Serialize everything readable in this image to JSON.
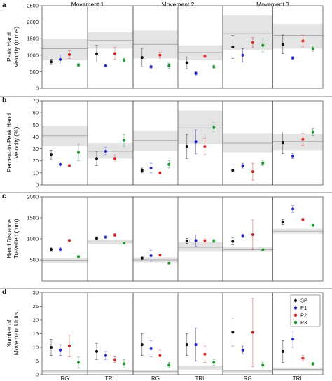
{
  "chart_data": {
    "type": "scatter",
    "columns": [
      "Movement 1",
      "Movement 2",
      "Movement 3"
    ],
    "groups": [
      "RG",
      "TRL"
    ],
    "legend": {
      "placement": "right",
      "entries": [
        {
          "name": "SP",
          "color": "#111111"
        },
        {
          "name": "P1",
          "color": "#1f1fd1"
        },
        {
          "name": "P2",
          "color": "#e0201b"
        },
        {
          "name": "P3",
          "color": "#1a9a2a"
        }
      ]
    },
    "panels": [
      {
        "letter": "a",
        "ylabel": [
          "Peak Hand",
          "Velocity (mm/s)"
        ],
        "ylim": [
          0,
          2500
        ],
        "yticks": [
          0,
          500,
          1000,
          1500,
          2000,
          2500
        ],
        "cells": [
          [
            {
              "band": [
                850,
                1500
              ],
              "mean": 1200,
              "points": [
                [
                  800,
                  80
                ],
                [
                  870,
                  140
                ],
                [
                  1020,
                  120
                ],
                [
                  700,
                  50
                ]
              ]
            },
            {
              "band": [
                1200,
                1700
              ],
              "mean": 1450,
              "points": [
                [
                  1050,
                  250
                ],
                [
                  680,
                  40
                ],
                [
                  1050,
                  180
                ],
                [
                  850,
                  60
                ]
              ]
            }
          ],
          [
            {
              "band": [
                900,
                1750
              ],
              "mean": 1330,
              "points": [
                [
                  930,
                  280
                ],
                [
                  650,
                  40
                ],
                [
                  1000,
                  90
                ],
                [
                  680,
                  80
                ]
              ]
            },
            {
              "band": [
                850,
                1300
              ],
              "mean": 1080,
              "points": [
                [
                  770,
                  180
                ],
                [
                  450,
                  50
                ],
                [
                  970,
                  40
                ],
                [
                  650,
                  50
                ]
              ]
            }
          ],
          [
            {
              "band": [
                1150,
                2200
              ],
              "mean": 1650,
              "points": [
                [
                  1250,
                  350
                ],
                [
                  1000,
                  200
                ],
                [
                  1380,
                  150
                ],
                [
                  1300,
                  200
                ]
              ]
            },
            {
              "band": [
                1200,
                1950
              ],
              "mean": 1600,
              "points": [
                [
                  1330,
                  280
                ],
                [
                  920,
                  40
                ],
                [
                  1430,
                  180
                ],
                [
                  1200,
                  80
                ]
              ]
            }
          ]
        ]
      },
      {
        "letter": "b",
        "ylabel": [
          "Percent-to-Peak Hand",
          "Velocity (%)"
        ],
        "ylim": [
          0,
          70
        ],
        "yticks": [
          0,
          10,
          20,
          30,
          40,
          50,
          60,
          70
        ],
        "cells": [
          [
            {
              "band": [
                32,
                49
              ],
              "mean": 41,
              "points": [
                [
                  25,
                  4
                ],
                [
                  17,
                  2
                ],
                [
                  16,
                  1
                ],
                [
                  27,
                  7
                ]
              ]
            },
            {
              "band": [
                22,
                35
              ],
              "mean": 28,
              "points": [
                [
                  22,
                  6
                ],
                [
                  28,
                  3
                ],
                [
                  22,
                  3
                ],
                [
                  37,
                  5
                ]
              ]
            }
          ],
          [
            {
              "band": [
                28,
                45
              ],
              "mean": 37,
              "points": [
                [
                  12,
                  2
                ],
                [
                  14,
                  4
                ],
                [
                  10,
                  1
                ],
                [
                  17,
                  3
                ]
              ]
            },
            {
              "band": [
                34,
                62
              ],
              "mean": 48,
              "points": [
                [
                  32,
                  10
                ],
                [
                  36,
                  10
                ],
                [
                  32,
                  7
                ],
                [
                  48,
                  4
                ]
              ]
            }
          ],
          [
            {
              "band": [
                27,
                43
              ],
              "mean": 35,
              "points": [
                [
                  12,
                  3
                ],
                [
                  16,
                  2
                ],
                [
                  11,
                  7
                ],
                [
                  18,
                  2
                ]
              ]
            },
            {
              "band": [
                29,
                42
              ],
              "mean": 36,
              "points": [
                [
                  35,
                  9
                ],
                [
                  24,
                  2
                ],
                [
                  38,
                  5
                ],
                [
                  44,
                  3
                ]
              ]
            }
          ]
        ]
      },
      {
        "letter": "c",
        "ylabel": [
          "Hand Distance",
          "Travelled (mm)"
        ],
        "ylim": [
          0,
          2000
        ],
        "yticks": [
          500,
          1000,
          1500,
          2000
        ],
        "cells": [
          [
            {
              "band": [
                430,
                550
              ],
              "mean": 490,
              "points": [
                [
                  750,
                  50
                ],
                [
                  750,
                  50
                ],
                [
                  960,
                  30
                ],
                [
                  580,
                  20
                ]
              ]
            },
            {
              "band": [
                880,
                980
              ],
              "mean": 930,
              "points": [
                [
                  1010,
                  40
                ],
                [
                  1040,
                  30
                ],
                [
                  1090,
                  40
                ],
                [
                  900,
                  20
                ]
              ]
            }
          ],
          [
            {
              "band": [
                440,
                560
              ],
              "mean": 500,
              "points": [
                [
                  540,
                  30
                ],
                [
                  600,
                  130
                ],
                [
                  610,
                  20
                ],
                [
                  420,
                  20
                ]
              ]
            },
            {
              "band": [
                690,
                920
              ],
              "mean": 800,
              "points": [
                [
                  950,
                  60
                ],
                [
                  960,
                  130
                ],
                [
                  960,
                  80
                ],
                [
                  950,
                  40
                ]
              ]
            }
          ],
          [
            {
              "band": [
                690,
                800
              ],
              "mean": 740,
              "points": [
                [
                  940,
                  80
                ],
                [
                  1070,
                  40
                ],
                [
                  1100,
                  350
                ],
                [
                  740,
                  20
                ]
              ]
            },
            {
              "band": [
                1120,
                1240
              ],
              "mean": 1180,
              "points": [
                [
                  1400,
                  60
                ],
                [
                  1710,
                  80
                ],
                [
                  1460,
                  30
                ],
                [
                  1320,
                  20
                ]
              ]
            }
          ]
        ]
      },
      {
        "letter": "d",
        "ylabel": [
          "Number of",
          "Movement Units"
        ],
        "ylim": [
          0,
          30
        ],
        "yticks": [
          0,
          5,
          10,
          15,
          20,
          25,
          30
        ],
        "cells": [
          [
            {
              "band": [
                0.8,
                1.8
              ],
              "mean": 1.3,
              "points": [
                [
                  10,
                  3
                ],
                [
                  9,
                  2
                ],
                [
                  10.5,
                  4
                ],
                [
                  4.5,
                  2
                ]
              ]
            },
            {
              "band": [
                0.8,
                1.8
              ],
              "mean": 1.3,
              "points": [
                [
                  8.5,
                  3
                ],
                [
                  7,
                  1.5
                ],
                [
                  5.5,
                  1
                ],
                [
                  4,
                  1.5
                ]
              ]
            }
          ],
          [
            {
              "band": [
                0.6,
                1.6
              ],
              "mean": 1.1,
              "points": [
                [
                  11,
                  4
                ],
                [
                  9.5,
                  3
                ],
                [
                  7,
                  2
                ],
                [
                  3.5,
                  1
                ]
              ]
            },
            {
              "band": [
                1.8,
                3.2
              ],
              "mean": 2.5,
              "points": [
                [
                  11,
                  4
                ],
                [
                  11,
                  6
                ],
                [
                  7.5,
                  3
                ],
                [
                  4.5,
                  1
                ]
              ]
            }
          ],
          [
            {
              "band": [
                0.8,
                1.8
              ],
              "mean": 1.3,
              "points": [
                [
                  15.5,
                  5
                ],
                [
                  9,
                  1.5
                ],
                [
                  15.5,
                  12.5
                ],
                [
                  3.5,
                  1
                ]
              ]
            },
            {
              "band": [
                1.2,
                2.6
              ],
              "mean": 1.9,
              "points": [
                [
                  8.5,
                  4
                ],
                [
                  13,
                  3
                ],
                [
                  6,
                  1
                ],
                [
                  4,
                  0.5
                ]
              ]
            }
          ]
        ]
      }
    ]
  }
}
